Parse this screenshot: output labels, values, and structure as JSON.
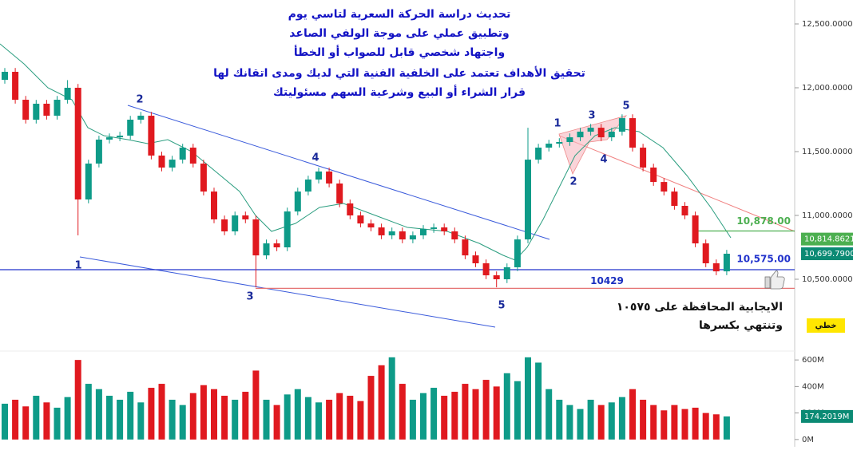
{
  "chart_data": {
    "type": "candlestick",
    "title_lines": [
      "تحديث دراسة الحركة السعرية لتاسي يوم",
      "وتطبيق عملي على موجة الولفي الصاعد",
      "واجتهاد شخصي قابل للصواب أو الخطأ",
      "تحقيق الأهداف تعتمد على الخلفية الفنية التي لديك ومدى اتقانك لها",
      "قرار الشراء أو البيع وشرعية السهم مسئوليتك"
    ],
    "annotation_lines": [
      "الايجابية المحافظة على ١٠٥٧٥",
      "وتنتهي بكسرها"
    ],
    "style_label": "خطي",
    "wave_labels": [
      "1",
      "2",
      "3",
      "4",
      "5",
      "1",
      "2",
      "3",
      "4",
      "5"
    ],
    "open": [
      12062,
      12125,
      11906,
      11750,
      11875,
      11781,
      11906,
      12000,
      11125,
      11406,
      11594,
      11612,
      11625,
      11750,
      11781,
      11469,
      11375,
      11437,
      11531,
      11406,
      11187,
      10969,
      10875,
      11000,
      10969,
      10687,
      10781,
      10750,
      11031,
      11187,
      11281,
      11344,
      11250,
      11094,
      11000,
      10937,
      10906,
      10844,
      10875,
      10812,
      10844,
      10894,
      10906,
      10875,
      10812,
      10687,
      10625,
      10531,
      10500,
      10594,
      10812,
      11437,
      11531,
      11562,
      11575,
      11612,
      11656,
      11687,
      11612,
      11656,
      11762,
      11531,
      11375,
      11262,
      11187,
      11075,
      11000,
      10781,
      10625,
      10562
    ],
    "high": [
      12155,
      12155,
      11936,
      11905,
      11905,
      11936,
      12060,
      12030,
      11436,
      11624,
      11642,
      11655,
      11780,
      11811,
      11811,
      11499,
      11467,
      11561,
      11561,
      11436,
      11217,
      10999,
      11030,
      11030,
      10999,
      10811,
      10811,
      11061,
      11217,
      11311,
      11374,
      11374,
      11280,
      11124,
      11030,
      10967,
      10936,
      10905,
      10905,
      10874,
      10924,
      10936,
      10936,
      10905,
      10842,
      10717,
      10655,
      10561,
      10624,
      10842,
      11687,
      11561,
      11592,
      11605,
      11642,
      11686,
      11717,
      11717,
      11686,
      11792,
      11792,
      11561,
      11405,
      11292,
      11217,
      11105,
      11030,
      10811,
      10655,
      10730
    ],
    "low": [
      12032,
      11876,
      11720,
      11720,
      11751,
      11751,
      11876,
      10844,
      11095,
      11376,
      11564,
      11582,
      11595,
      11720,
      11439,
      11345,
      11345,
      11407,
      11376,
      11157,
      10939,
      10845,
      10845,
      10939,
      10437,
      10657,
      10720,
      10720,
      11001,
      11157,
      11251,
      11220,
      11064,
      10970,
      10907,
      10876,
      10814,
      10814,
      10782,
      10782,
      10814,
      10864,
      10845,
      10782,
      10657,
      10595,
      10501,
      10437,
      10470,
      10564,
      10782,
      11407,
      11501,
      11532,
      11545,
      11582,
      11626,
      11582,
      11582,
      11626,
      11501,
      11345,
      11232,
      11157,
      11045,
      10970,
      10751,
      10595,
      10532,
      10532
    ],
    "close": [
      12125,
      11906,
      11750,
      11875,
      11781,
      11906,
      12000,
      11125,
      11406,
      11594,
      11612,
      11625,
      11750,
      11781,
      11469,
      11375,
      11437,
      11531,
      11406,
      11187,
      10969,
      10875,
      11000,
      10969,
      10687,
      10781,
      10750,
      11031,
      11187,
      11281,
      11344,
      11250,
      11094,
      11000,
      10937,
      10906,
      10844,
      10875,
      10812,
      10844,
      10894,
      10906,
      10875,
      10812,
      10687,
      10625,
      10531,
      10500,
      10594,
      10812,
      11437,
      11531,
      11562,
      11575,
      11612,
      11656,
      11687,
      11612,
      11656,
      11762,
      11531,
      11375,
      11262,
      11187,
      11075,
      11000,
      10781,
      10625,
      10562,
      10700
    ],
    "up_color": "#0e9b88",
    "down_color": "#e0191f",
    "ylim": [
      9937.5,
      12687.5
    ],
    "yticks": [
      {
        "value": 10500,
        "label": "10,500.0000"
      },
      {
        "value": 11000,
        "label": "11,000.0000"
      },
      {
        "value": 11500,
        "label": "11,500.0000"
      },
      {
        "value": 12000,
        "label": "12,000.0000"
      },
      {
        "value": 12500,
        "label": "12,500.0000"
      }
    ],
    "levels": [
      {
        "value": 10878,
        "label": "10,878.00",
        "color": "#4caf50"
      },
      {
        "value": 10575,
        "label": "10,575.00",
        "color": "#2233cc"
      },
      {
        "value": 10429,
        "color": "#e57373",
        "label_color": "#1a2fbf"
      }
    ],
    "price_markers": [
      {
        "value": 10814.8621,
        "label": "10,814.8621",
        "color": "#4caf50"
      },
      {
        "value": 10699.79,
        "label": "10,699.7900",
        "color": "#0b8a74"
      }
    ],
    "volume": {
      "values": [
        270,
        300,
        250,
        330,
        280,
        240,
        320,
        600,
        420,
        380,
        330,
        300,
        360,
        280,
        390,
        420,
        300,
        260,
        350,
        410,
        380,
        330,
        300,
        360,
        520,
        300,
        260,
        340,
        380,
        320,
        280,
        300,
        350,
        330,
        290,
        480,
        560,
        620,
        420,
        300,
        350,
        390,
        330,
        360,
        420,
        380,
        450,
        400,
        500,
        440,
        620,
        580,
        380,
        300,
        260,
        230,
        300,
        260,
        280,
        320,
        380,
        300,
        260,
        220,
        260,
        230,
        240,
        200,
        190,
        174.2019
      ],
      "ylim": [
        -55,
        667
      ],
      "yticks": [
        {
          "value": 0,
          "label": "0M"
        },
        {
          "value": 200,
          "label": "200M"
        },
        {
          "value": 400,
          "label": "400M"
        },
        {
          "value": 600,
          "label": "600M"
        }
      ],
      "marker": {
        "value": 174.2019,
        "label": "174.2019M",
        "color": "#0b8a74"
      }
    }
  }
}
